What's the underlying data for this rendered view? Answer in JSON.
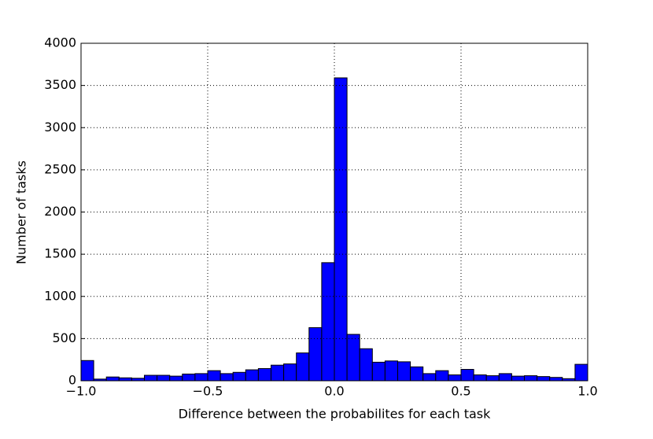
{
  "chart_data": {
    "type": "histogram",
    "xlabel": "Difference between the probabilites for each task",
    "ylabel": "Number of tasks",
    "bins": [
      -1.0,
      -0.95,
      -0.9,
      -0.85,
      -0.8,
      -0.75,
      -0.7,
      -0.65,
      -0.6,
      -0.55,
      -0.5,
      -0.45,
      -0.4,
      -0.35,
      -0.3,
      -0.25,
      -0.2,
      -0.15,
      -0.1,
      -0.05,
      0.0,
      0.05,
      0.1,
      0.15,
      0.2,
      0.25,
      0.3,
      0.35,
      0.4,
      0.45,
      0.5,
      0.55,
      0.6,
      0.65,
      0.7,
      0.75,
      0.8,
      0.85,
      0.9,
      0.95,
      1.0
    ],
    "values": [
      240,
      20,
      45,
      35,
      30,
      65,
      65,
      55,
      80,
      85,
      120,
      85,
      100,
      130,
      145,
      185,
      200,
      330,
      630,
      1400,
      3590,
      550,
      380,
      220,
      235,
      225,
      165,
      85,
      120,
      70,
      135,
      70,
      60,
      85,
      55,
      60,
      50,
      40,
      25,
      195
    ],
    "color": "#0000ff",
    "xlim": [
      -1.0,
      1.0
    ],
    "xticks": [
      {
        "value": -1.0,
        "label": "−1.0"
      },
      {
        "value": -0.5,
        "label": "−0.5"
      },
      {
        "value": 0.0,
        "label": "0.0"
      },
      {
        "value": 0.5,
        "label": "0.5"
      },
      {
        "value": 1.0,
        "label": "1.0"
      }
    ],
    "ylim": [
      0,
      4000
    ],
    "yticks": [
      0,
      500,
      1000,
      1500,
      2000,
      2500,
      3000,
      3500,
      4000
    ],
    "grid": true
  }
}
